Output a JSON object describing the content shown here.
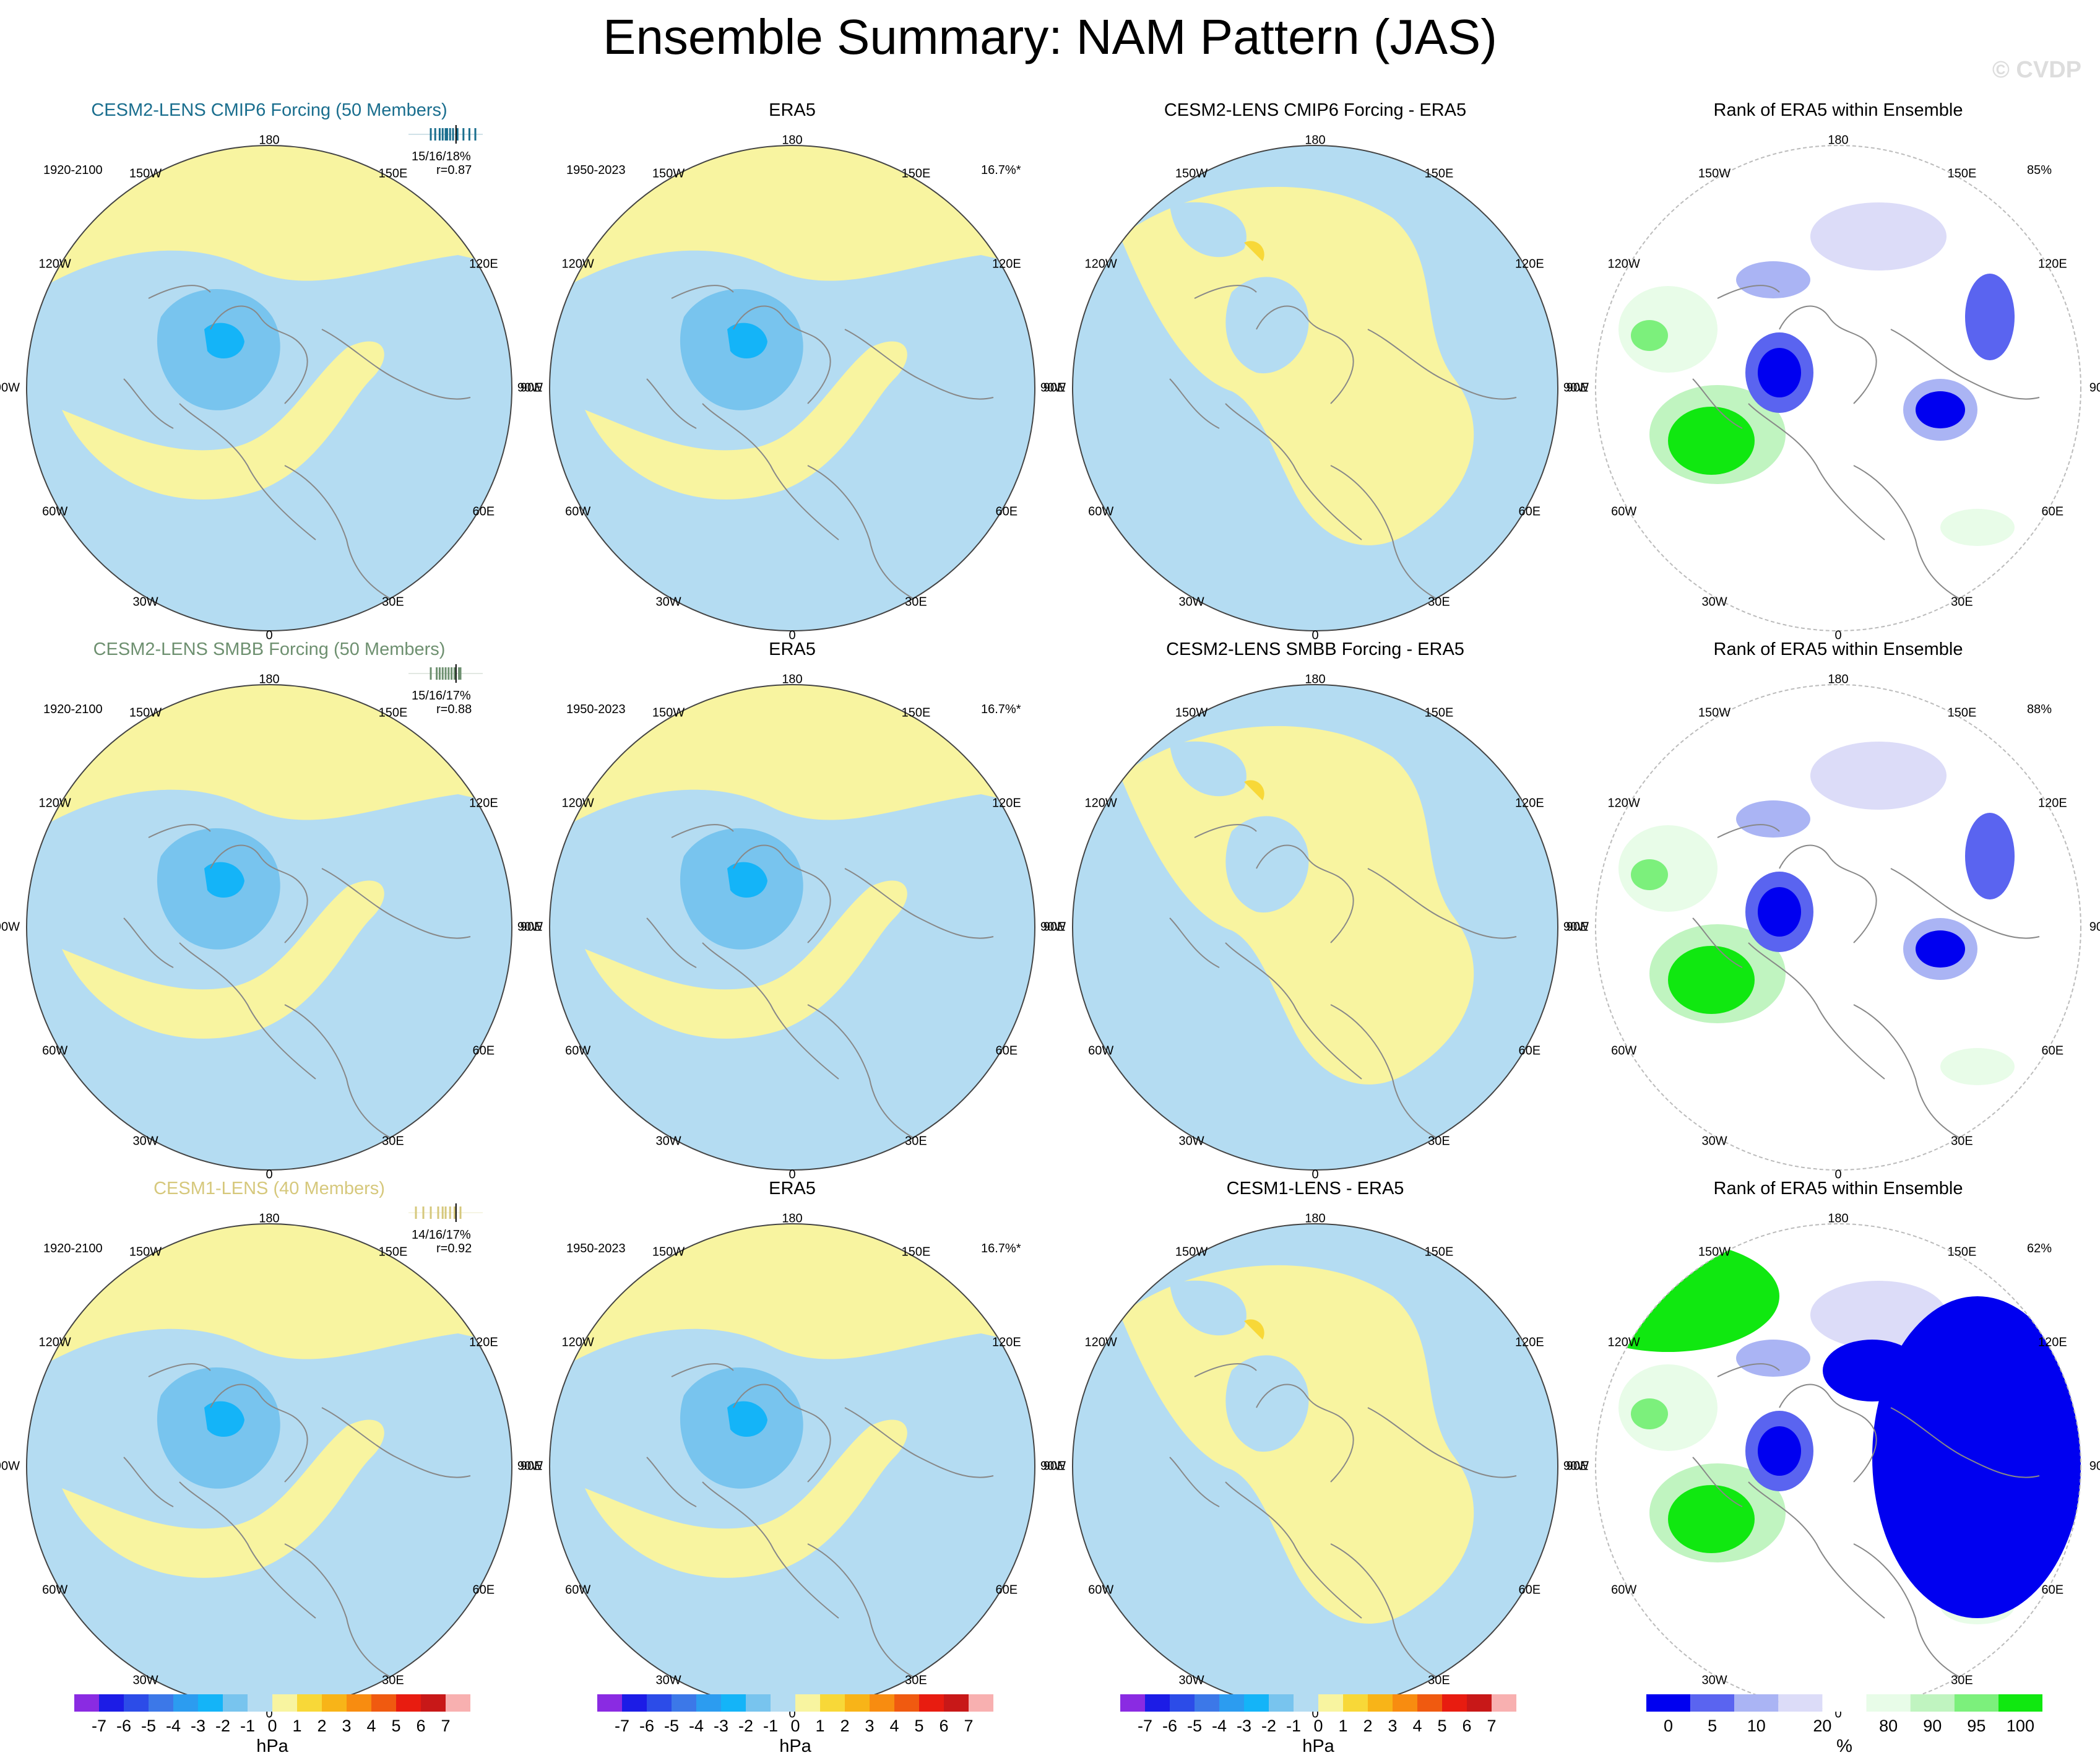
{
  "title": "Ensemble Summary: NAM Pattern (JAS)",
  "watermark": "© CVDP",
  "colors": {
    "neg1": "#b4dcf2",
    "neg2": "#78c4ee",
    "neg3": "#4ea8e8",
    "neg4": "#14b4f8",
    "pos1": "#f8f4a0",
    "pos2": "#f8d838",
    "coast": "#888888",
    "rank_low1": "#0000f0",
    "rank_low2": "#5a64f0",
    "rank_low3": "#aab4f4",
    "rank_low4": "#dcdcf8",
    "rank_mid": "#ffffff",
    "rank_high1": "#e8fce8",
    "rank_high2": "#c0f4c0",
    "rank_high3": "#7cf07c",
    "rank_high4": "#10e810"
  },
  "longitude_labels": [
    "180",
    "150E",
    "120E",
    "90E",
    "60E",
    "30E",
    "0",
    "30W",
    "60W",
    "90W",
    "120W",
    "150W"
  ],
  "rows": [
    {
      "model": {
        "title": "CESM2-LENS CMIP6 Forcing (50 Members)",
        "title_color": "#1a6e8e",
        "period": "1920-2100",
        "stats": "15/16/18%",
        "corr": "r=0.87"
      },
      "obs": {
        "title": "ERA5",
        "period": "1950-2023",
        "pct": "16.7%*"
      },
      "diff": {
        "title": "CESM2-LENS CMIP6 Forcing - ERA5"
      },
      "rank": {
        "title": "Rank of ERA5 within Ensemble",
        "pct": "85%"
      }
    },
    {
      "model": {
        "title": "CESM2-LENS SMBB Forcing (50 Members)",
        "title_color": "#6e9070",
        "period": "1920-2100",
        "stats": "15/16/17%",
        "corr": "r=0.88"
      },
      "obs": {
        "title": "ERA5",
        "period": "1950-2023",
        "pct": "16.7%*"
      },
      "diff": {
        "title": "CESM2-LENS SMBB Forcing - ERA5"
      },
      "rank": {
        "title": "Rank of ERA5 within Ensemble",
        "pct": "88%"
      }
    },
    {
      "model": {
        "title": "CESM1-LENS (40 Members)",
        "title_color": "#d6c87c",
        "period": "1920-2100",
        "stats": "14/16/17%",
        "corr": "r=0.92"
      },
      "obs": {
        "title": "ERA5",
        "period": "1950-2023",
        "pct": "16.7%*"
      },
      "diff": {
        "title": "CESM1-LENS - ERA5"
      },
      "rank": {
        "title": "Rank of ERA5 within Ensemble",
        "pct": "62%"
      }
    }
  ],
  "chart_data": {
    "type": "heatmap",
    "description_projection": "north polar stereographic maps",
    "hpa_colorbar": {
      "unit": "hPa",
      "tick_labels": [
        "-7",
        "-6",
        "-5",
        "-4",
        "-3",
        "-2",
        "-1",
        "0",
        "1",
        "2",
        "3",
        "4",
        "5",
        "6",
        "7"
      ],
      "colors": [
        "#8a2be2",
        "#1c1ce6",
        "#2c4ce8",
        "#3c78e8",
        "#2c9cf0",
        "#14b4f8",
        "#78c4ee",
        "#b4dcf2",
        "#f8f4a0",
        "#f8d838",
        "#f8b418",
        "#f88c10",
        "#f05a10",
        "#e81c10",
        "#c81818",
        "#f8b0b0"
      ]
    },
    "rank_colorbar": {
      "unit": "%",
      "tick_labels": [
        "0",
        "5",
        "10",
        "20",
        "80",
        "90",
        "95",
        "100"
      ],
      "colors": [
        "#0000f0",
        "#5a64f0",
        "#aab4f4",
        "#dcdcf8",
        "#ffffff",
        "#e8fce8",
        "#c0f4c0",
        "#7cf07c",
        "#10e810"
      ]
    },
    "spread_markers": [
      {
        "row": 1,
        "members": [
          15,
          15.3,
          15.6,
          15.8,
          16,
          16.1,
          16.3,
          16.5,
          16.8,
          17.2,
          17.6,
          18
        ],
        "obs": 16.7
      },
      {
        "row": 2,
        "members": [
          15,
          15.4,
          15.6,
          15.8,
          16,
          16.2,
          16.4,
          16.6,
          16.9,
          17
        ],
        "obs": 16.7
      },
      {
        "row": 3,
        "members": [
          14,
          14.5,
          15,
          15.5,
          15.8,
          16,
          16.3,
          16.6,
          17
        ],
        "obs": 16.7
      }
    ]
  }
}
